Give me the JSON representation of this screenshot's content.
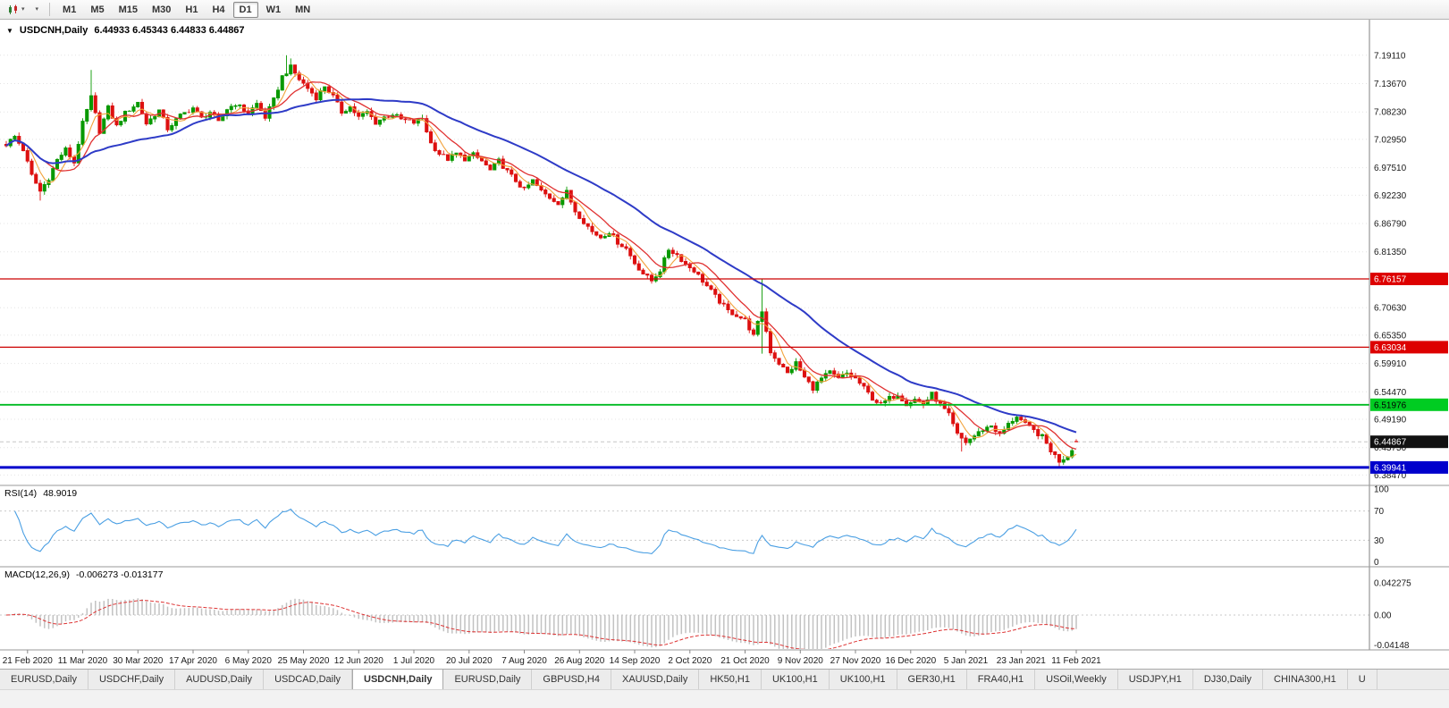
{
  "icons": {
    "caret": "▾",
    "symbol_dropdown": "▼"
  },
  "toolbar": {
    "timeframes": [
      "M1",
      "M5",
      "M15",
      "M30",
      "H1",
      "H4",
      "D1",
      "W1",
      "MN"
    ],
    "active_timeframe": "D1"
  },
  "chart": {
    "symbol": "USDCNH,Daily",
    "ohlc": "6.44933 6.45343 6.44833 6.44867"
  },
  "indicators": {
    "rsi": {
      "name": "RSI(14)",
      "value": "48.9019",
      "axis_labels": [
        "100",
        "70",
        "30",
        "0"
      ]
    },
    "macd": {
      "name": "MACD(12,26,9)",
      "values": "-0.006273 -0.013177",
      "axis_labels": [
        "0.042275",
        "0.00",
        "-0.04148"
      ]
    }
  },
  "price_axis": {
    "ticks": [
      "7.19110",
      "7.13670",
      "7.08230",
      "7.02950",
      "6.97510",
      "6.92230",
      "6.86790",
      "6.81350",
      "6.70630",
      "6.65350",
      "6.59910",
      "6.54470",
      "6.49190",
      "6.43750",
      "6.38470"
    ],
    "badges": [
      {
        "label": "6.76157",
        "bg": "#dd0000",
        "fg": "#ffffff"
      },
      {
        "label": "6.63034",
        "bg": "#dd0000",
        "fg": "#ffffff"
      },
      {
        "label": "6.51976",
        "bg": "#00cc22",
        "fg": "#000000"
      },
      {
        "label": "6.44867",
        "bg": "#111111",
        "fg": "#ffffff"
      },
      {
        "label": "6.39941",
        "bg": "#0000cc",
        "fg": "#ffffff"
      }
    ]
  },
  "tabs": [
    "EURUSD,Daily",
    "USDCHF,Daily",
    "AUDUSD,Daily",
    "USDCAD,Daily",
    "USDCNH,Daily",
    "EURUSD,Daily",
    "GBPUSD,H4",
    "XAUUSD,Daily",
    "HK50,H1",
    "UK100,H1",
    "UK100,H1",
    "GER30,H1",
    "FRA40,H1",
    "USOil,Weekly",
    "USDJPY,H1",
    "DJ30,Daily",
    "CHINA300,H1",
    "U"
  ],
  "active_tab_index": 4,
  "chart_data": {
    "type": "candlestick",
    "symbol": "USDCNH",
    "timeframe": "Daily",
    "title": "USDCNH,Daily 6.44933 6.45343 6.44833 6.44867",
    "candle_count": 253,
    "price_min": 6.37,
    "price_max": 7.22,
    "current_price": 6.44867,
    "last_candle": [
      6.44933,
      6.45343,
      6.44833,
      6.44867
    ],
    "up_color": "#089900",
    "down_color": "#dd1111",
    "close_anchors": [
      [
        0,
        7.02
      ],
      [
        2,
        7.035
      ],
      [
        4,
        7.01
      ],
      [
        6,
        6.96
      ],
      [
        8,
        6.93
      ],
      [
        10,
        6.955
      ],
      [
        12,
        6.99
      ],
      [
        14,
        7.01
      ],
      [
        16,
        6.985
      ],
      [
        18,
        7.06
      ],
      [
        20,
        7.11
      ],
      [
        22,
        7.045
      ],
      [
        24,
        7.09
      ],
      [
        26,
        7.055
      ],
      [
        28,
        7.08
      ],
      [
        31,
        7.1
      ],
      [
        33,
        7.06
      ],
      [
        36,
        7.085
      ],
      [
        38,
        7.05
      ],
      [
        41,
        7.075
      ],
      [
        44,
        7.09
      ],
      [
        46,
        7.07
      ],
      [
        48,
        7.082
      ],
      [
        50,
        7.062
      ],
      [
        52,
        7.088
      ],
      [
        54,
        7.098
      ],
      [
        57,
        7.08
      ],
      [
        59,
        7.098
      ],
      [
        61,
        7.072
      ],
      [
        63,
        7.105
      ],
      [
        65,
        7.15
      ],
      [
        67,
        7.168
      ],
      [
        69,
        7.145
      ],
      [
        71,
        7.128
      ],
      [
        73,
        7.11
      ],
      [
        75,
        7.132
      ],
      [
        77,
        7.112
      ],
      [
        79,
        7.082
      ],
      [
        81,
        7.092
      ],
      [
        83,
        7.072
      ],
      [
        85,
        7.082
      ],
      [
        87,
        7.062
      ],
      [
        89,
        7.072
      ],
      [
        91,
        7.078
      ],
      [
        93,
        7.068
      ],
      [
        96,
        7.062
      ],
      [
        98,
        7.07
      ],
      [
        100,
        7.022
      ],
      [
        102,
        7.002
      ],
      [
        104,
        6.992
      ],
      [
        106,
        7.002
      ],
      [
        108,
        6.992
      ],
      [
        110,
        7.0
      ],
      [
        112,
        6.988
      ],
      [
        114,
        6.97
      ],
      [
        116,
        6.988
      ],
      [
        118,
        6.968
      ],
      [
        120,
        6.95
      ],
      [
        122,
        6.932
      ],
      [
        124,
        6.95
      ],
      [
        126,
        6.93
      ],
      [
        128,
        6.918
      ],
      [
        130,
        6.908
      ],
      [
        132,
        6.928
      ],
      [
        134,
        6.892
      ],
      [
        136,
        6.872
      ],
      [
        138,
        6.852
      ],
      [
        140,
        6.842
      ],
      [
        142,
        6.852
      ],
      [
        144,
        6.832
      ],
      [
        146,
        6.82
      ],
      [
        148,
        6.792
      ],
      [
        150,
        6.772
      ],
      [
        152,
        6.758
      ],
      [
        154,
        6.778
      ],
      [
        156,
        6.818
      ],
      [
        158,
        6.808
      ],
      [
        160,
        6.79
      ],
      [
        162,
        6.778
      ],
      [
        164,
        6.758
      ],
      [
        166,
        6.738
      ],
      [
        168,
        6.718
      ],
      [
        170,
        6.7
      ],
      [
        172,
        6.692
      ],
      [
        174,
        6.682
      ],
      [
        176,
        6.652
      ],
      [
        178,
        6.7
      ],
      [
        180,
        6.622
      ],
      [
        182,
        6.6
      ],
      [
        184,
        6.58
      ],
      [
        186,
        6.6
      ],
      [
        188,
        6.572
      ],
      [
        190,
        6.552
      ],
      [
        192,
        6.57
      ],
      [
        194,
        6.582
      ],
      [
        196,
        6.57
      ],
      [
        198,
        6.58
      ],
      [
        200,
        6.57
      ],
      [
        202,
        6.552
      ],
      [
        204,
        6.532
      ],
      [
        206,
        6.52
      ],
      [
        208,
        6.532
      ],
      [
        210,
        6.54
      ],
      [
        212,
        6.522
      ],
      [
        214,
        6.53
      ],
      [
        216,
        6.52
      ],
      [
        218,
        6.54
      ],
      [
        220,
        6.52
      ],
      [
        222,
        6.5
      ],
      [
        224,
        6.462
      ],
      [
        226,
        6.448
      ],
      [
        228,
        6.46
      ],
      [
        230,
        6.472
      ],
      [
        232,
        6.48
      ],
      [
        234,
        6.462
      ],
      [
        236,
        6.482
      ],
      [
        238,
        6.498
      ],
      [
        240,
        6.482
      ],
      [
        242,
        6.47
      ],
      [
        244,
        6.458
      ],
      [
        246,
        6.432
      ],
      [
        248,
        6.412
      ],
      [
        250,
        6.422
      ],
      [
        252,
        6.449
      ]
    ],
    "spikes": [
      {
        "i": 8,
        "l": 6.912
      },
      {
        "i": 20,
        "h": 7.163
      },
      {
        "i": 66,
        "h": 7.191
      },
      {
        "i": 67,
        "h": 7.185
      },
      {
        "i": 178,
        "h": 6.762,
        "l": 6.618
      },
      {
        "i": 225,
        "l": 6.43
      },
      {
        "i": 248,
        "l": 6.398
      }
    ],
    "hlines": [
      {
        "price": 6.76157,
        "color": "#cc0000",
        "width": 1.2
      },
      {
        "price": 6.63034,
        "color": "#cc0000",
        "width": 1.2
      },
      {
        "price": 6.51976,
        "color": "#00bb22",
        "width": 1.8
      },
      {
        "price": 6.39941,
        "color": "#0000cc",
        "width": 3
      }
    ],
    "moving_averages": [
      {
        "period": 5,
        "color": "#f2a33c",
        "width": 1.1
      },
      {
        "period": 10,
        "color": "#e03131",
        "width": 1.3
      },
      {
        "period": 34,
        "color": "#2e3bc7",
        "width": 2
      }
    ],
    "rsi": {
      "period": 14,
      "color": "#4a9fe3",
      "current": 48.9019
    },
    "macd": {
      "fast": 12,
      "slow": 26,
      "signal": 9,
      "macd_current": -0.006273,
      "signal_current": -0.013177,
      "hist_color": "#c2c2c2",
      "signal_color": "#dd3333"
    },
    "first_label_index": 5,
    "label_step": 13,
    "dates": [
      "21 Feb 2020",
      "11 Mar 2020",
      "30 Mar 2020",
      "17 Apr 2020",
      "6 May 2020",
      "25 May 2020",
      "12 Jun 2020",
      "1 Jul 2020",
      "20 Jul 2020",
      "7 Aug 2020",
      "26 Aug 2020",
      "14 Sep 2020",
      "2 Oct 2020",
      "21 Oct 2020",
      "9 Nov 2020",
      "27 Nov 2020",
      "16 Dec 2020",
      "5 Jan 2021",
      "23 Jan 2021",
      "11 Feb 2021"
    ]
  }
}
